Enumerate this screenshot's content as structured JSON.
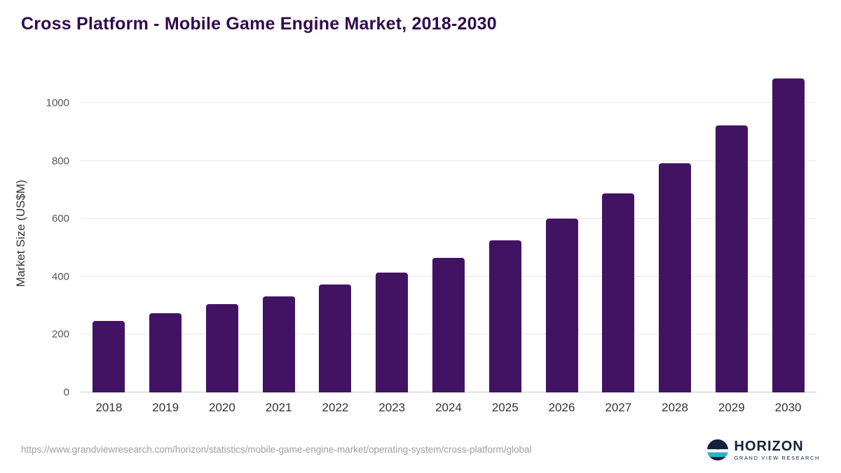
{
  "title": "Cross Platform - Mobile Game Engine Market, 2018-2030",
  "colors": {
    "title": "#2f0b4d",
    "bar": "#421263",
    "grid": "#e8e8e8",
    "axis_text": "#555555",
    "xaxis_text": "#333333",
    "footer_text": "#9e9e9e",
    "logo_navy": "#14213d",
    "logo_teal": "#2bb3c4"
  },
  "footer": {
    "source_url": "https://www.grandviewresearch.com/horizon/statistics/mobile-game-engine-market/operating-system/cross-platform/global"
  },
  "logo": {
    "name": "HORIZON",
    "subtitle": "GRAND VIEW RESEARCH",
    "icon": "horizon-circle-icon"
  },
  "chart_data": {
    "type": "bar",
    "title": "Cross Platform - Mobile Game Engine Market, 2018-2030",
    "categories": [
      "2018",
      "2019",
      "2020",
      "2021",
      "2022",
      "2023",
      "2024",
      "2025",
      "2026",
      "2027",
      "2028",
      "2029",
      "2030"
    ],
    "values": [
      248,
      273,
      305,
      333,
      372,
      414,
      465,
      526,
      600,
      688,
      792,
      922,
      1085
    ],
    "xlabel": "",
    "ylabel": "Market Size (US$M)",
    "ylim": [
      0,
      1100
    ],
    "yticks": [
      0,
      200,
      400,
      600,
      800,
      1000
    ],
    "grid": true,
    "legend": "none",
    "bar_color": "#421263"
  }
}
